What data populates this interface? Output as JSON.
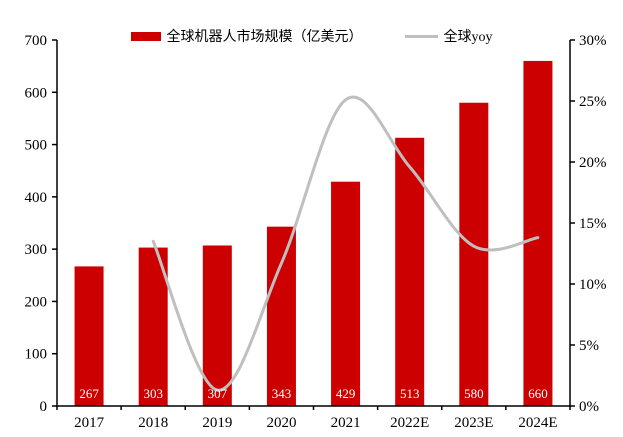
{
  "chart_data": {
    "type": "bar",
    "subtype": "bar-with-smooth-line-overlay",
    "title": "",
    "categories": [
      "2017",
      "2018",
      "2019",
      "2020",
      "2021",
      "2022E",
      "2023E",
      "2024E"
    ],
    "series": [
      {
        "name": "全球机器人市场规模（亿美元）",
        "type": "bar",
        "axis": "left",
        "color": "#CC0000",
        "values": [
          267,
          303,
          307,
          343,
          429,
          513,
          580,
          660
        ],
        "data_label_color": "#FFFFFF",
        "data_label_position": "inside-base"
      },
      {
        "name": "全球yoy",
        "type": "line",
        "axis": "right",
        "color": "#BFBFBF",
        "smooth": true,
        "unit": "%",
        "values": [
          null,
          13.5,
          1.3,
          11.7,
          25.1,
          19.6,
          13.1,
          13.8
        ]
      }
    ],
    "left_axis": {
      "min": 0,
      "max": 700,
      "step": 100,
      "tick_labels": [
        "0",
        "100",
        "200",
        "300",
        "400",
        "500",
        "600",
        "700"
      ]
    },
    "right_axis": {
      "min": 0,
      "max": 30,
      "step": 5,
      "tick_labels": [
        "0%",
        "5%",
        "10%",
        "15%",
        "20%",
        "25%",
        "30%"
      ]
    },
    "grid": false,
    "legend_position": "top-center",
    "axis_color": "#000000",
    "text_color": "#000000"
  }
}
